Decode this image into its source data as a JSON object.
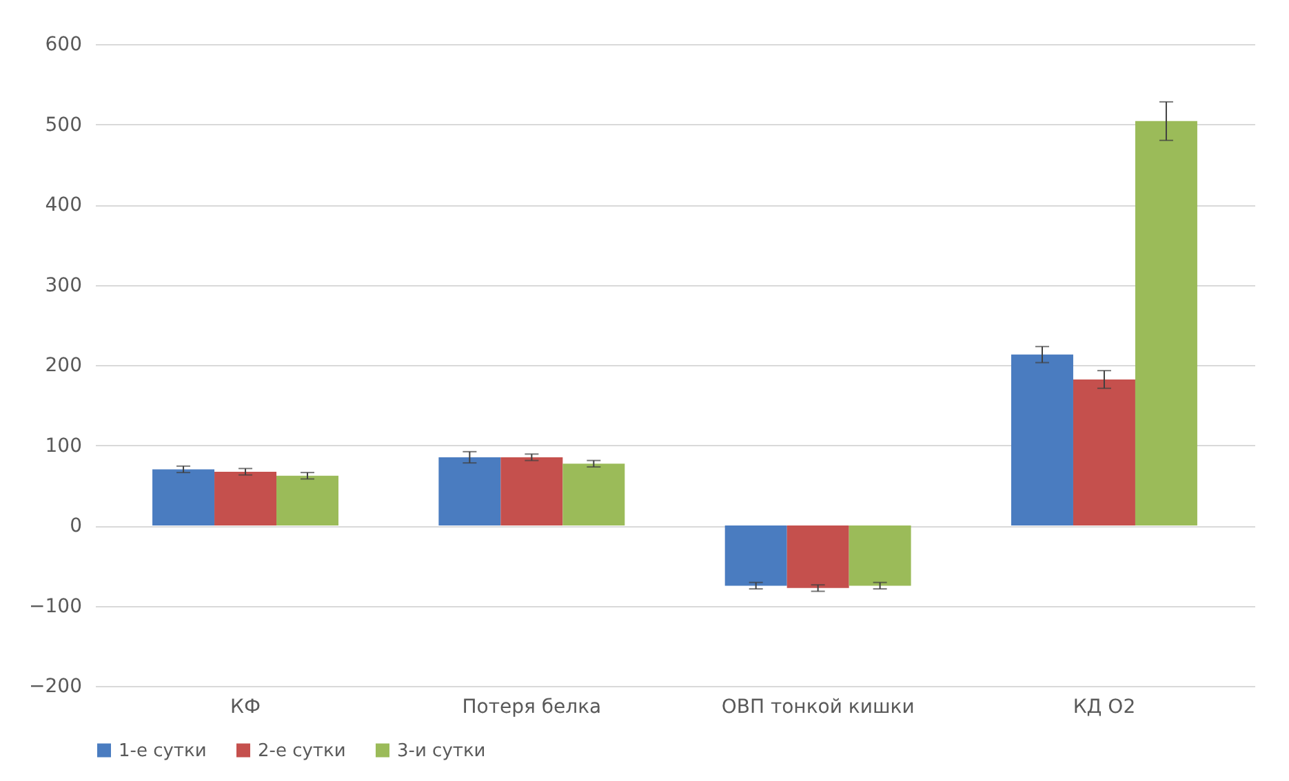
{
  "chart_data": {
    "type": "bar",
    "categories": [
      "КФ",
      "Потеря белка",
      "ОВП тонкой кишки",
      "КД О2"
    ],
    "series": [
      {
        "name": "1-е сутки",
        "color": "#4a7cc0",
        "values": [
          70,
          85,
          -75,
          213
        ],
        "errors": [
          4,
          7,
          4,
          10
        ]
      },
      {
        "name": "2-е сутки",
        "color": "#c5504d",
        "values": [
          67,
          85,
          -78,
          182
        ],
        "errors": [
          4,
          4,
          4,
          11
        ]
      },
      {
        "name": "3-и сутки",
        "color": "#9bbb59",
        "values": [
          62,
          77,
          -75,
          504
        ],
        "errors": [
          4,
          4,
          4,
          24
        ]
      }
    ],
    "ylim": [
      -200,
      600
    ],
    "yticks": [
      -200,
      -100,
      0,
      100,
      200,
      300,
      400,
      500,
      600
    ],
    "grid": "y",
    "legend": "bottom"
  }
}
